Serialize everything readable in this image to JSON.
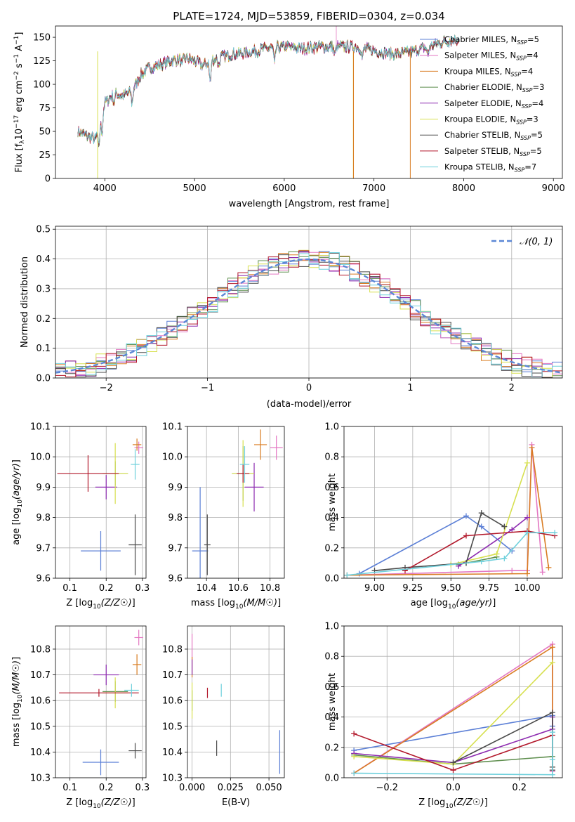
{
  "colors": {
    "Chabrier MILES": "#5b7fd6",
    "Salpeter MILES": "#e377c2",
    "Kroupa MILES": "#d97c22",
    "Chabrier ELODIE": "#5f8f4f",
    "Salpeter ELODIE": "#8d2bb0",
    "Kroupa ELODIE": "#d7e050",
    "Chabrier STELIB": "#4a4a4a",
    "Salpeter STELIB": "#b2182b",
    "Kroupa STELIB": "#6fd0dc"
  },
  "chart_data": [
    {
      "id": "spectrum",
      "type": "line",
      "title": "PLATE=1724, MJD=53859, FIBERID=0304, z=0.034",
      "xlabel": "wavelength [Angstrom, rest frame]",
      "ylabel": "Flux [f",
      "ylabel_parts": [
        "Flux [f",
        "λ",
        "10",
        "−17",
        " erg cm",
        "−2",
        " s",
        "−1",
        " A",
        "−1",
        "]"
      ],
      "xlim": [
        3450,
        9100
      ],
      "ylim": [
        0,
        162
      ],
      "xticks": [
        4000,
        5000,
        6000,
        7000,
        8000,
        9000
      ],
      "yticks": [
        0,
        25,
        50,
        75,
        100,
        125,
        150
      ],
      "continuum_x": [
        3700,
        3800,
        3900,
        4000,
        4100,
        4200,
        4300,
        4400,
        4500,
        4600,
        4700,
        4800,
        4900,
        5000,
        5100,
        5200,
        5400,
        5600,
        5800,
        6000,
        6200,
        6400,
        6600,
        6800,
        7000,
        7200,
        7400,
        7600,
        7800,
        7950
      ],
      "continuum_y": [
        50,
        45,
        42,
        80,
        90,
        88,
        92,
        110,
        118,
        120,
        124,
        126,
        128,
        125,
        120,
        126,
        132,
        134,
        138,
        140,
        138,
        140,
        140,
        140,
        136,
        132,
        134,
        140,
        146,
        148
      ],
      "legend": [
        {
          "label": "Chabrier MILES, N",
          "sub": "SSP",
          "n": "=5"
        },
        {
          "label": "Salpeter MILES, N",
          "sub": "SSP",
          "n": "=4"
        },
        {
          "label": "Kroupa MILES, N",
          "sub": "SSP",
          "n": "=4"
        },
        {
          "label": "Chabrier ELODIE, N",
          "sub": "SSP",
          "n": "=3"
        },
        {
          "label": "Salpeter ELODIE, N",
          "sub": "SSP",
          "n": "=4"
        },
        {
          "label": "Kroupa ELODIE, N",
          "sub": "SSP",
          "n": "=3"
        },
        {
          "label": "Chabrier STELIB, N",
          "sub": "SSP",
          "n": "=5"
        },
        {
          "label": "Salpeter STELIB, N",
          "sub": "SSP",
          "n": "=5"
        },
        {
          "label": "Kroupa STELIB, N",
          "sub": "SSP",
          "n": "=7"
        }
      ]
    },
    {
      "id": "histogram",
      "type": "bar",
      "xlabel": "(data-model)/error",
      "ylabel": "Normed distribution",
      "xlim": [
        -2.5,
        2.5
      ],
      "ylim": [
        0,
        0.51
      ],
      "xticks": [
        -2,
        -1,
        0,
        1,
        2
      ],
      "yticks": [
        0.0,
        0.1,
        0.2,
        0.3,
        0.4,
        0.5
      ],
      "legend": "𝒩(0, 1)",
      "bin_width": 0.1
    },
    {
      "id": "age-vs-Z",
      "type": "scatter",
      "xlabel": "Z [log10(Z/Z☉)]",
      "ylabel": "age  [log10(age/yr)]",
      "xlim": [
        0.06,
        0.31
      ],
      "ylim": [
        9.6,
        10.1
      ],
      "xticks": [
        0.1,
        0.2,
        0.3
      ],
      "yticks": [
        9.6,
        9.7,
        9.8,
        9.9,
        10.0,
        10.1
      ],
      "points": [
        {
          "model": "Chabrier MILES",
          "x": 0.185,
          "xerr": 0.055,
          "y": 9.69,
          "yerr": 0.065
        },
        {
          "model": "Salpeter MILES",
          "x": 0.29,
          "xerr": 0.012,
          "y": 10.03,
          "yerr": 0.02
        },
        {
          "model": "Kroupa MILES",
          "x": 0.285,
          "xerr": 0.012,
          "y": 10.04,
          "yerr": 0.02
        },
        {
          "model": "Chabrier ELODIE",
          "x": 0.225,
          "xerr": 0.035,
          "y": 9.945,
          "yerr": 0.04
        },
        {
          "model": "Salpeter ELODIE",
          "x": 0.2,
          "xerr": 0.03,
          "y": 9.9,
          "yerr": 0.04
        },
        {
          "model": "Kroupa ELODIE",
          "x": 0.225,
          "xerr": 0.035,
          "y": 9.945,
          "yerr": 0.1
        },
        {
          "model": "Chabrier STELIB",
          "x": 0.28,
          "xerr": 0.018,
          "y": 9.71,
          "yerr": 0.1
        },
        {
          "model": "Salpeter STELIB",
          "x": 0.15,
          "xerr": 0.085,
          "y": 9.945,
          "yerr": 0.06
        },
        {
          "model": "Kroupa STELIB",
          "x": 0.28,
          "xerr": 0.012,
          "y": 9.975,
          "yerr": 0.05
        }
      ]
    },
    {
      "id": "age-vs-mass",
      "type": "scatter",
      "xlabel": "mass [log10(M/M☉)]",
      "ylabel": "",
      "xlim": [
        10.28,
        10.89
      ],
      "ylim": [
        9.6,
        10.1
      ],
      "xticks": [
        10.4,
        10.6,
        10.8
      ],
      "yticks": [
        9.6,
        9.7,
        9.8,
        9.9,
        10.0,
        10.1
      ],
      "points": [
        {
          "model": "Chabrier MILES",
          "x": 10.36,
          "xerr": 0.05,
          "y": 9.69,
          "yerr": 0.21
        },
        {
          "model": "Salpeter MILES",
          "x": 10.84,
          "xerr": 0.04,
          "y": 10.03,
          "yerr": 0.04
        },
        {
          "model": "Kroupa MILES",
          "x": 10.74,
          "xerr": 0.04,
          "y": 10.04,
          "yerr": 0.05
        },
        {
          "model": "Chabrier ELODIE",
          "x": 10.63,
          "xerr": 0.07,
          "y": 9.945,
          "yerr": 0.09
        },
        {
          "model": "Salpeter ELODIE",
          "x": 10.7,
          "xerr": 0.06,
          "y": 9.9,
          "yerr": 0.08
        },
        {
          "model": "Kroupa ELODIE",
          "x": 10.63,
          "xerr": 0.07,
          "y": 9.945,
          "yerr": 0.11
        },
        {
          "model": "Chabrier STELIB",
          "x": 10.405,
          "xerr": 0.02,
          "y": 9.71,
          "yerr": 0.1
        },
        {
          "model": "Salpeter STELIB",
          "x": 10.63,
          "xerr": 0.04,
          "y": 9.945,
          "yerr": 0.03
        },
        {
          "model": "Kroupa STELIB",
          "x": 10.64,
          "xerr": 0.03,
          "y": 9.975,
          "yerr": 0.06
        }
      ]
    },
    {
      "id": "weight-vs-age",
      "type": "line",
      "xlabel": "age  [log10(age/yr)]",
      "ylabel": "mass weight",
      "xlim": [
        8.8,
        10.23
      ],
      "ylim": [
        0,
        1
      ],
      "xticks": [
        9.0,
        9.25,
        9.5,
        9.75,
        10.0
      ],
      "yticks": [
        0.0,
        0.2,
        0.4,
        0.6,
        0.8,
        1.0
      ],
      "series": [
        {
          "model": "Chabrier MILES",
          "x": [
            8.9,
            9.6,
            9.7,
            9.9
          ],
          "y": [
            0.03,
            0.41,
            0.34,
            0.18
          ]
        },
        {
          "model": "Salpeter MILES",
          "x": [
            8.82,
            9.9,
            10.0,
            10.03,
            10.1
          ],
          "y": [
            0.02,
            0.05,
            0.05,
            0.88,
            0.04
          ]
        },
        {
          "model": "Kroupa MILES",
          "x": [
            8.82,
            10.0,
            10.03,
            10.14
          ],
          "y": [
            0.02,
            0.03,
            0.86,
            0.07
          ]
        },
        {
          "model": "Chabrier ELODIE",
          "x": [
            9.55,
            9.6,
            9.8
          ],
          "y": [
            0.09,
            0.1,
            0.14
          ]
        },
        {
          "model": "Salpeter ELODIE",
          "x": [
            9.55,
            9.9,
            10.0
          ],
          "y": [
            0.08,
            0.32,
            0.4
          ]
        },
        {
          "model": "Kroupa ELODIE",
          "x": [
            9.5,
            9.8,
            10.0
          ],
          "y": [
            0.09,
            0.16,
            0.76
          ]
        },
        {
          "model": "Chabrier STELIB",
          "x": [
            9.0,
            9.2,
            9.6,
            9.7,
            9.85
          ],
          "y": [
            0.05,
            0.07,
            0.1,
            0.43,
            0.34
          ]
        },
        {
          "model": "Salpeter STELIB",
          "x": [
            9.2,
            9.6,
            10.0,
            10.18
          ],
          "y": [
            0.05,
            0.28,
            0.31,
            0.28
          ]
        },
        {
          "model": "Kroupa STELIB",
          "x": [
            8.82,
            9.7,
            9.85,
            10.0,
            10.18
          ],
          "y": [
            0.02,
            0.11,
            0.13,
            0.3,
            0.3
          ]
        }
      ]
    },
    {
      "id": "mass-vs-Z",
      "type": "scatter",
      "xlabel": "Z [log10(Z/Z☉)]",
      "ylabel": "mass [log10(M/M☉)]",
      "xlim": [
        0.06,
        0.31
      ],
      "ylim": [
        10.3,
        10.89
      ],
      "xticks": [
        0.1,
        0.2,
        0.3
      ],
      "yticks": [
        10.3,
        10.4,
        10.5,
        10.6,
        10.7,
        10.8
      ],
      "points": [
        {
          "model": "Chabrier MILES",
          "x": 0.185,
          "xerr": 0.05,
          "y": 10.36,
          "yerr": 0.05
        },
        {
          "model": "Salpeter MILES",
          "x": 0.29,
          "xerr": 0.012,
          "y": 10.845,
          "yerr": 0.03
        },
        {
          "model": "Kroupa MILES",
          "x": 0.285,
          "xerr": 0.012,
          "y": 10.74,
          "yerr": 0.04
        },
        {
          "model": "Chabrier ELODIE",
          "x": 0.225,
          "xerr": 0.035,
          "y": 10.635,
          "yerr": 0.04
        },
        {
          "model": "Salpeter ELODIE",
          "x": 0.2,
          "xerr": 0.035,
          "y": 10.7,
          "yerr": 0.04
        },
        {
          "model": "Kroupa ELODIE",
          "x": 0.225,
          "xerr": 0.035,
          "y": 10.63,
          "yerr": 0.06
        },
        {
          "model": "Chabrier STELIB",
          "x": 0.28,
          "xerr": 0.018,
          "y": 10.405,
          "yerr": 0.03
        },
        {
          "model": "Salpeter STELIB",
          "x": 0.18,
          "xerr": 0.11,
          "y": 10.63,
          "yerr": 0.015
        },
        {
          "model": "Kroupa STELIB",
          "x": 0.27,
          "xerr": 0.02,
          "y": 10.64,
          "yerr": 0.025
        }
      ]
    },
    {
      "id": "mass-vs-EBV",
      "type": "scatter",
      "xlabel": "E(B-V)",
      "ylabel": "",
      "xlim": [
        -0.003,
        0.06
      ],
      "ylim": [
        10.3,
        10.89
      ],
      "xticks": [
        0.0,
        0.025,
        0.05
      ],
      "xtick_labels": [
        "0.000",
        "0.025",
        "0.050"
      ],
      "yticks": [
        10.3,
        10.4,
        10.5,
        10.6,
        10.7,
        10.8
      ],
      "points": [
        {
          "model": "Chabrier MILES",
          "x": 0.057,
          "y": 10.4,
          "yerr": 0.085
        },
        {
          "model": "Salpeter MILES",
          "x": 0.0,
          "y": 10.81,
          "yerr": 0.05
        },
        {
          "model": "Kroupa MILES",
          "x": 0.0,
          "y": 10.73,
          "yerr": 0.04
        },
        {
          "model": "Chabrier ELODIE",
          "x": 0.0,
          "y": 10.6,
          "yerr": 0.04
        },
        {
          "model": "Salpeter ELODIE",
          "x": 0.0,
          "y": 10.73,
          "yerr": 0.03
        },
        {
          "model": "Kroupa ELODIE",
          "x": 0.0,
          "y": 10.6,
          "yerr": 0.07
        },
        {
          "model": "Chabrier STELIB",
          "x": 0.016,
          "y": 10.415,
          "yerr": 0.03
        },
        {
          "model": "Salpeter STELIB",
          "x": 0.01,
          "y": 10.63,
          "yerr": 0.02
        },
        {
          "model": "Kroupa STELIB",
          "x": 0.019,
          "y": 10.64,
          "yerr": 0.025
        }
      ]
    },
    {
      "id": "weight-vs-Z",
      "type": "line",
      "xlabel": "Z [log10(Z/Z☉)]",
      "ylabel": "mass weight",
      "xlim": [
        -0.33,
        0.33
      ],
      "ylim": [
        0,
        1
      ],
      "xticks": [
        -0.2,
        0.0,
        0.2
      ],
      "xtick_labels": [
        "−0.2",
        "0.0",
        "0.2"
      ],
      "yticks": [
        0.0,
        0.2,
        0.4,
        0.6,
        0.8,
        1.0
      ],
      "series": [
        {
          "model": "Chabrier MILES",
          "x": [
            -0.3,
            0.3,
            0.3
          ],
          "y": [
            0.18,
            0.41,
            0.34
          ]
        },
        {
          "model": "Salpeter MILES",
          "x": [
            -0.3,
            0.3,
            0.3,
            0.3
          ],
          "y": [
            0.03,
            0.88,
            0.05,
            0.04
          ]
        },
        {
          "model": "Kroupa MILES",
          "x": [
            -0.3,
            0.3,
            0.3
          ],
          "y": [
            0.03,
            0.86,
            0.07
          ]
        },
        {
          "model": "Chabrier ELODIE",
          "x": [
            -0.3,
            0.0,
            0.3
          ],
          "y": [
            0.15,
            0.09,
            0.14
          ]
        },
        {
          "model": "Salpeter ELODIE",
          "x": [
            -0.3,
            0.0,
            0.3,
            0.3
          ],
          "y": [
            0.16,
            0.1,
            0.32,
            0.4
          ]
        },
        {
          "model": "Kroupa ELODIE",
          "x": [
            -0.3,
            0.0,
            0.3
          ],
          "y": [
            0.14,
            0.09,
            0.76
          ]
        },
        {
          "model": "Chabrier STELIB",
          "x": [
            0.0,
            0.3,
            0.3,
            0.3
          ],
          "y": [
            0.1,
            0.43,
            0.05,
            0.07
          ]
        },
        {
          "model": "Salpeter STELIB",
          "x": [
            -0.3,
            0.0,
            0.3
          ],
          "y": [
            0.29,
            0.05,
            0.28
          ]
        },
        {
          "model": "Kroupa STELIB",
          "x": [
            -0.3,
            0.3,
            0.3,
            0.3
          ],
          "y": [
            0.03,
            0.02,
            0.3,
            0.12
          ]
        }
      ]
    }
  ]
}
